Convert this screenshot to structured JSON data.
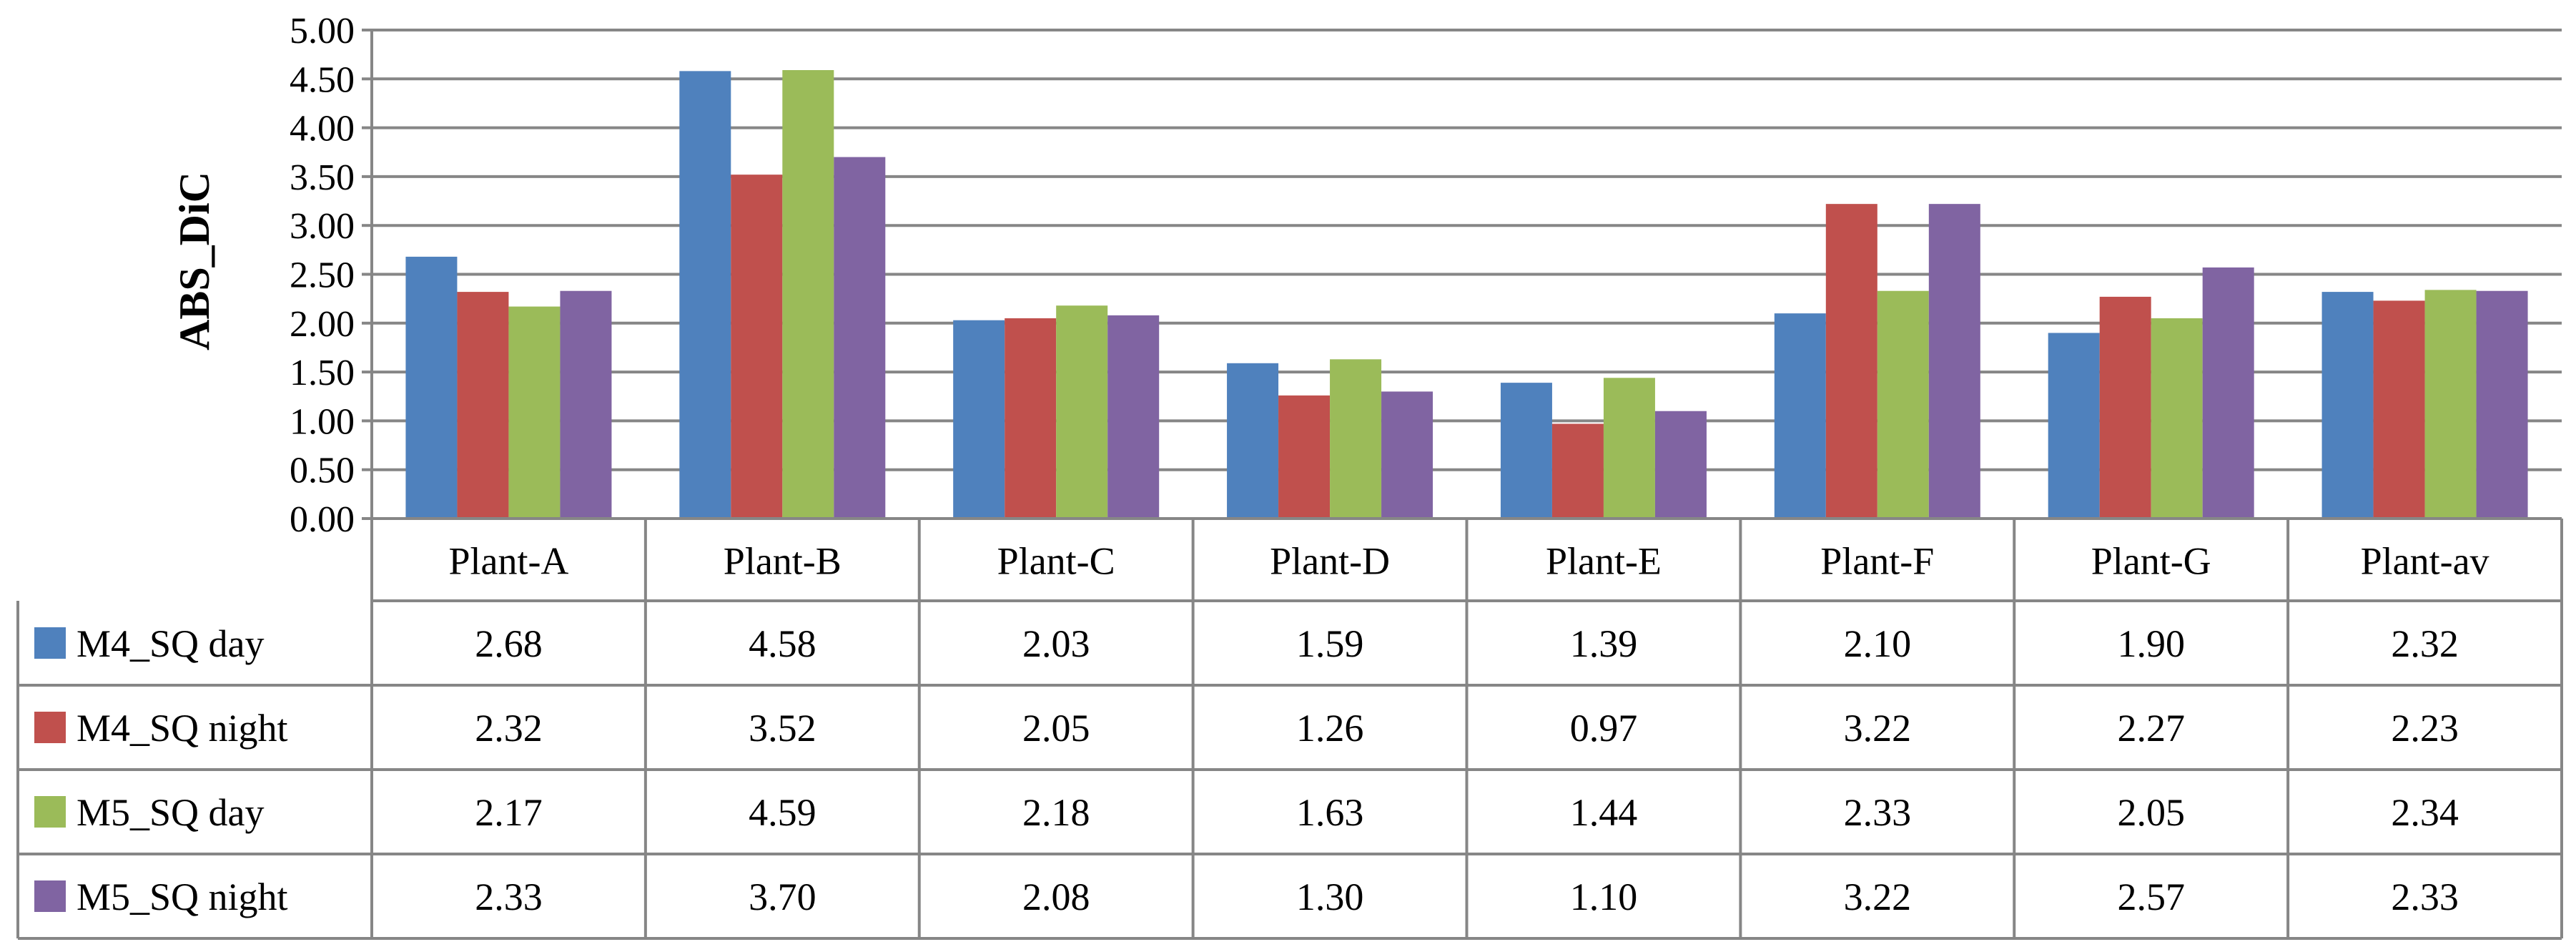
{
  "chart_data": {
    "type": "bar",
    "title": "",
    "xlabel": "",
    "ylabel": "ABS_DiC",
    "ylim": [
      0,
      5
    ],
    "yticks": [
      "0.00",
      "0.50",
      "1.00",
      "1.50",
      "2.00",
      "2.50",
      "3.00",
      "3.50",
      "4.00",
      "4.50",
      "5.00"
    ],
    "grid": true,
    "legend": "data-table-left",
    "categories": [
      "Plant-A",
      "Plant-B",
      "Plant-C",
      "Plant-D",
      "Plant-E",
      "Plant-F",
      "Plant-G",
      "Plant-av"
    ],
    "series": [
      {
        "name": "M4_SQ day",
        "color": "#4F81BD",
        "values": [
          2.68,
          4.58,
          2.03,
          1.59,
          1.39,
          2.1,
          1.9,
          2.32
        ],
        "labels": [
          "2.68",
          "4.58",
          "2.03",
          "1.59",
          "1.39",
          "2.10",
          "1.90",
          "2.32"
        ]
      },
      {
        "name": "M4_SQ night",
        "color": "#C0504D",
        "values": [
          2.32,
          3.52,
          2.05,
          1.26,
          0.97,
          3.22,
          2.27,
          2.23
        ],
        "labels": [
          "2.32",
          "3.52",
          "2.05",
          "1.26",
          "0.97",
          "3.22",
          "2.27",
          "2.23"
        ]
      },
      {
        "name": "M5_SQ day",
        "color": "#9BBB59",
        "values": [
          2.17,
          4.59,
          2.18,
          1.63,
          1.44,
          2.33,
          2.05,
          2.34
        ],
        "labels": [
          "2.17",
          "4.59",
          "2.18",
          "1.63",
          "1.44",
          "2.33",
          "2.05",
          "2.34"
        ]
      },
      {
        "name": "M5_SQ night",
        "color": "#8064A2",
        "values": [
          2.33,
          3.7,
          2.08,
          1.3,
          1.1,
          3.22,
          2.57,
          2.33
        ],
        "labels": [
          "2.33",
          "3.70",
          "2.08",
          "1.30",
          "1.10",
          "3.22",
          "2.57",
          "2.33"
        ]
      }
    ]
  }
}
